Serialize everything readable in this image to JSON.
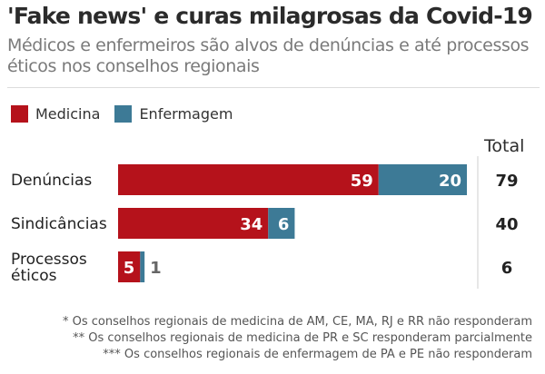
{
  "header": {
    "title": "'Fake news' e curas milagrosas da Covid-19",
    "subtitle": "Médicos e enfermeiros são alvos de denúncias e até processos éticos nos conselhos regionais"
  },
  "legend": [
    {
      "label": "Medicina",
      "color": "#b5121b"
    },
    {
      "label": "Enfermagem",
      "color": "#3d7a96"
    }
  ],
  "total_header": "Total",
  "chart_data": {
    "type": "bar",
    "orientation": "horizontal",
    "stacked": true,
    "categories": [
      "Denúncias",
      "Sindicâncias",
      "Processos\néticos"
    ],
    "series": [
      {
        "name": "Medicina",
        "values": [
          59,
          34,
          5
        ],
        "color": "#b5121b"
      },
      {
        "name": "Enfermagem",
        "values": [
          20,
          6,
          1
        ],
        "color": "#3d7a96"
      }
    ],
    "totals": [
      79,
      40,
      6
    ]
  },
  "footnotes": [
    "* Os conselhos regionais de medicina de AM, CE, MA, RJ e RR não responderam",
    "** Os conselhos regionais de medicina de PR e SC responderam parcialmente",
    "*** Os conselhos regionais de enfermagem de PA e PE não responderam"
  ]
}
